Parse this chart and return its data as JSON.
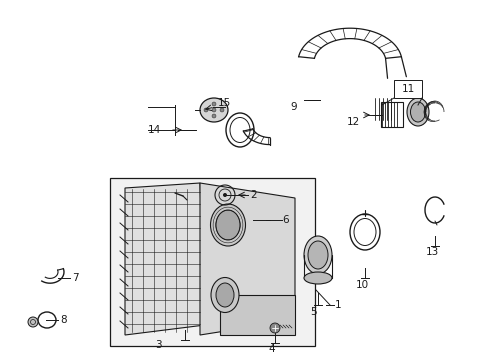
{
  "background_color": "#ffffff",
  "fig_width": 4.89,
  "fig_height": 3.6,
  "dpi": 100,
  "line_color": "#1a1a1a",
  "fill_light": "#e8e8e8",
  "fill_mid": "#d0d0d0",
  "fill_dark": "#b0b0b0"
}
